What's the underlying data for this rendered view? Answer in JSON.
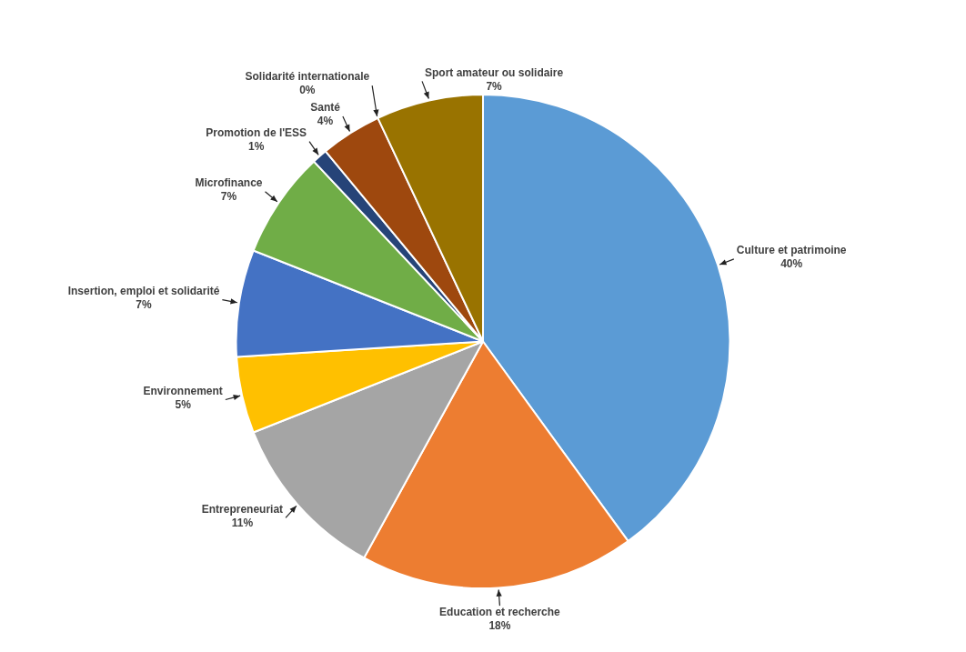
{
  "chart_data": {
    "type": "pie",
    "categories": [
      "Culture et patrimoine",
      "Education et recherche",
      "Entrepreneuriat",
      "Environnement",
      "Insertion, emploi et solidarité",
      "Microfinance",
      "Promotion de l'ESS",
      "Santé",
      "Solidarité internationale",
      "Sport amateur ou solidaire"
    ],
    "values": [
      40,
      18,
      11,
      5,
      7,
      7,
      1,
      4,
      0,
      7
    ],
    "colors": [
      "#5b9bd5",
      "#ed7d31",
      "#a5a5a5",
      "#ffc000",
      "#4472c4",
      "#70ad47",
      "#264478",
      "#9e480e",
      "#636363",
      "#997300"
    ],
    "value_labels": [
      "40%",
      "18%",
      "11%",
      "5%",
      "7%",
      "7%",
      "1%",
      "4%",
      "0%",
      "7%"
    ],
    "legend": false
  }
}
